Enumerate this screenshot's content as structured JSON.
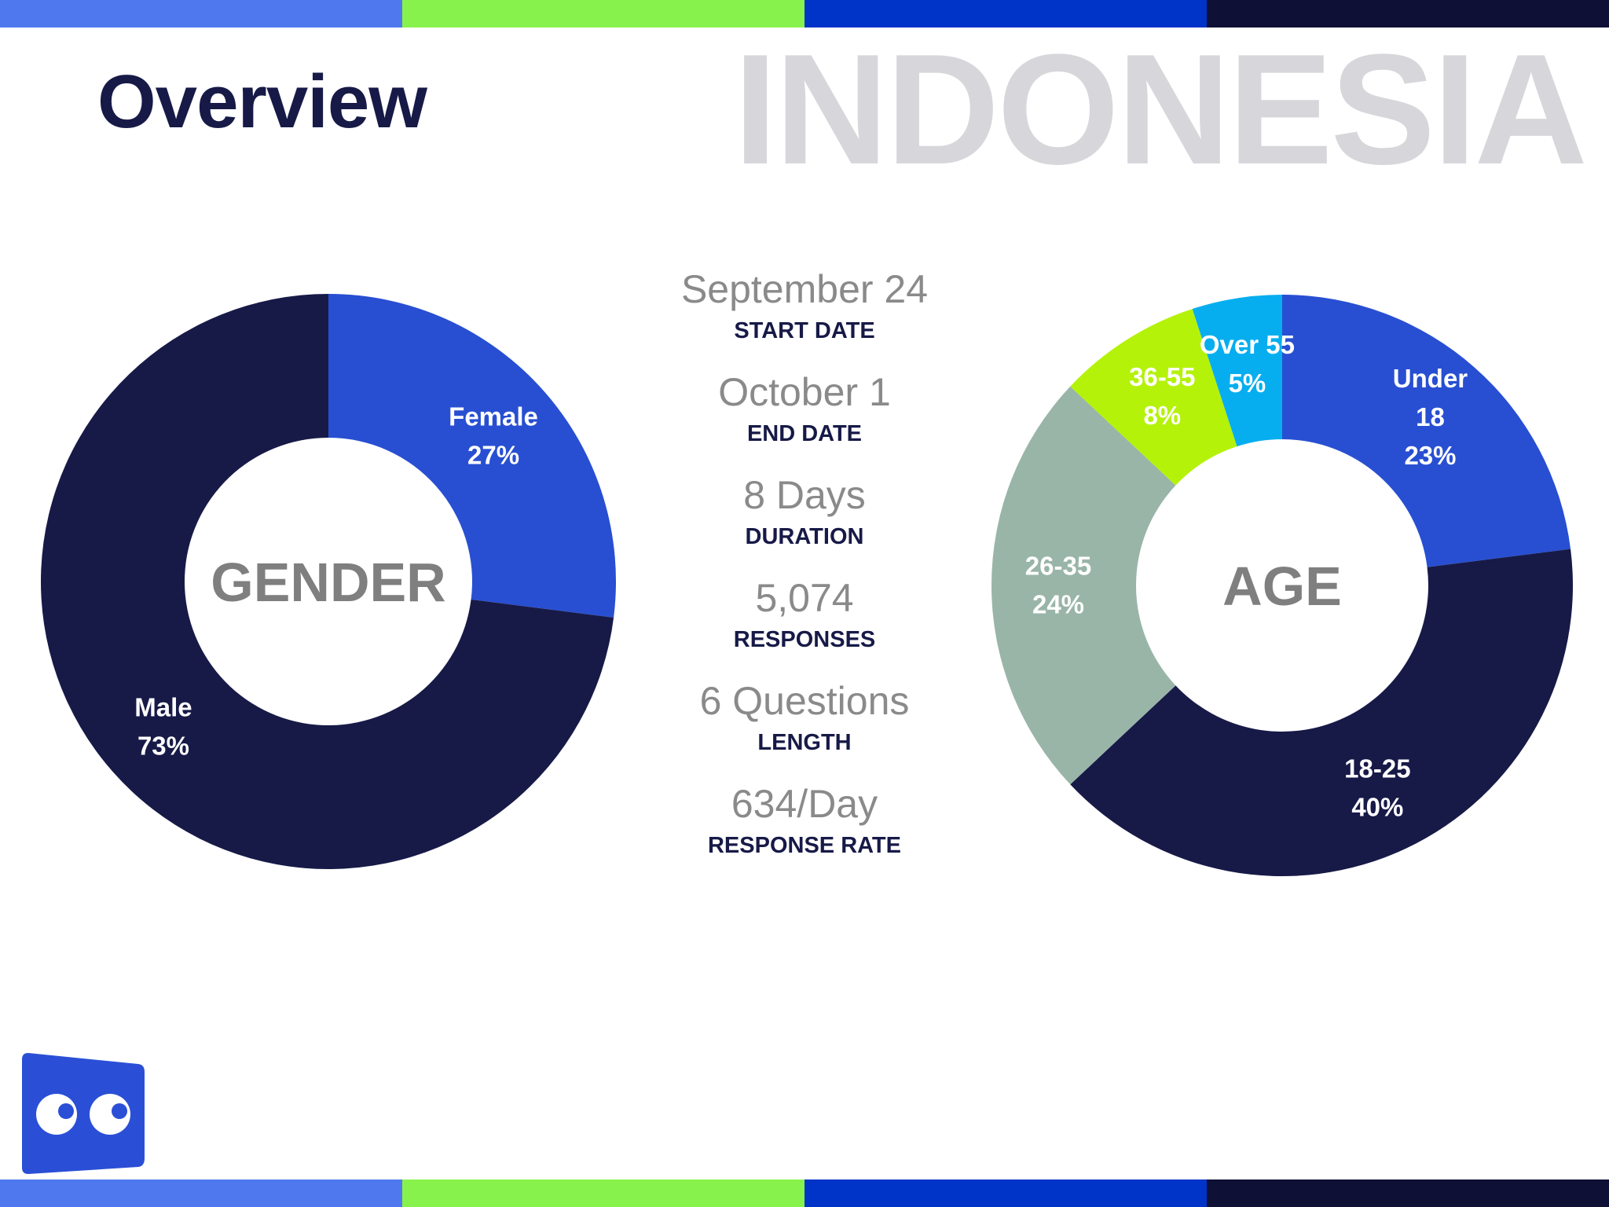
{
  "header": {
    "title": "Overview",
    "watermark": "INDONESIA"
  },
  "stripe_colors": [
    "#4f78ef",
    "#88f24c",
    "#0033c8",
    "#0e1035"
  ],
  "stats": [
    {
      "value": "September 24",
      "label": "START DATE"
    },
    {
      "value": "October 1",
      "label": "END DATE"
    },
    {
      "value": "8 Days",
      "label": "DURATION"
    },
    {
      "value": "5,074",
      "label": "RESPONSES"
    },
    {
      "value": "6 Questions",
      "label": "LENGTH"
    },
    {
      "value": "634/Day",
      "label": "RESPONSE RATE"
    }
  ],
  "logo": {
    "icon": "eyes-logo-icon",
    "color": "#2a4fd6"
  },
  "chart_data": [
    {
      "type": "pie",
      "center_label": "GENDER",
      "unit": "%",
      "slices": [
        {
          "label": [
            "Female"
          ],
          "value": 27,
          "color": "#284fd2"
        },
        {
          "label": [
            "Male"
          ],
          "value": 73,
          "color": "#171a47"
        }
      ]
    },
    {
      "type": "pie",
      "center_label": "AGE",
      "unit": "%",
      "slices": [
        {
          "label": [
            "Under",
            "18"
          ],
          "value": 23,
          "color": "#284fd2"
        },
        {
          "label": [
            "18-25"
          ],
          "value": 40,
          "color": "#171a47"
        },
        {
          "label": [
            "26-35"
          ],
          "value": 24,
          "color": "#99b5a8"
        },
        {
          "label": [
            "36-55"
          ],
          "value": 8,
          "color": "#b4f20a"
        },
        {
          "label": [
            "Over 55"
          ],
          "value": 5,
          "color": "#07aeef"
        }
      ]
    }
  ]
}
